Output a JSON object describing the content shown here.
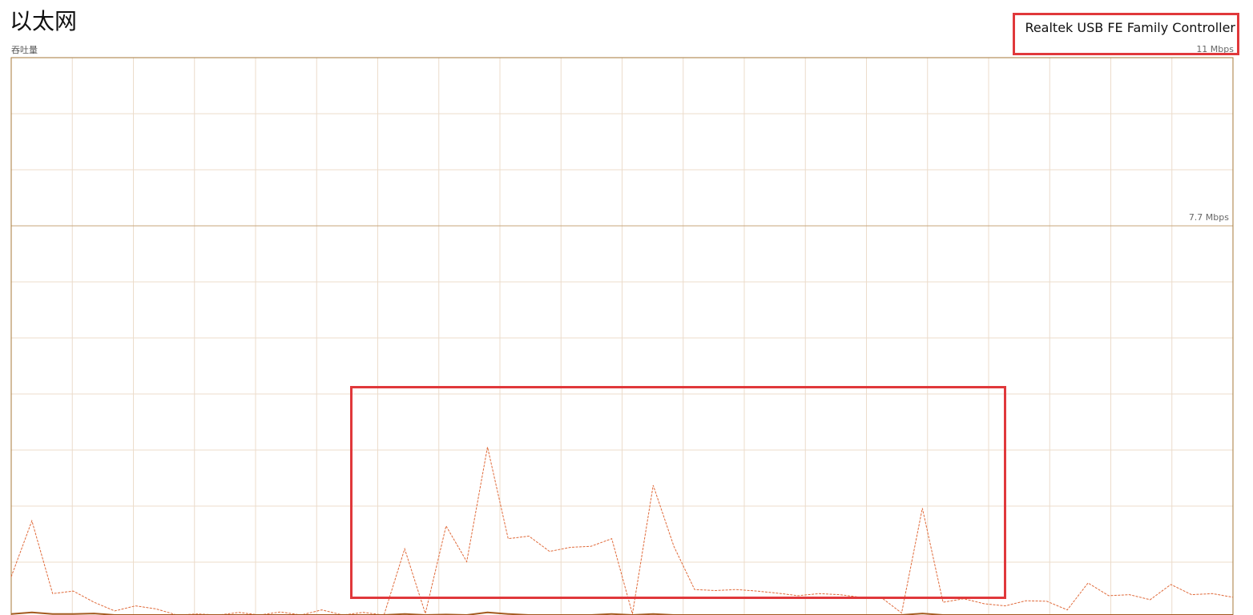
{
  "header": {
    "title": "以太网",
    "subtitle": "吞吐量"
  },
  "device": {
    "name": "Realtek USB FE Family Controller",
    "max_speed_label": "11 Mbps"
  },
  "graph": {
    "scale_label": "7.7 Mbps",
    "colors": {
      "border": "#a77a3a",
      "grid": "#ecdccb",
      "scale_line": "#c7a57a",
      "receive": "#e06a3a",
      "send": "#a35a1f",
      "highlight": "#e0383b"
    }
  },
  "chart_data": {
    "type": "line",
    "ylim": [
      0,
      11
    ],
    "y_unit": "Mbps",
    "x_count": 60,
    "series": [
      {
        "style": "dashed",
        "values": [
          0.75,
          1.85,
          0.42,
          0.47,
          0.25,
          0.08,
          0.18,
          0.12,
          0.0,
          0.02,
          0.0,
          0.05,
          0.0,
          0.06,
          0.0,
          0.1,
          0.0,
          0.05,
          0.0,
          1.3,
          0.03,
          1.75,
          1.05,
          3.3,
          1.5,
          1.55,
          1.25,
          1.33,
          1.35,
          1.5,
          0.02,
          2.55,
          1.35,
          0.5,
          0.48,
          0.5,
          0.47,
          0.43,
          0.38,
          0.42,
          0.4,
          0.35,
          0.35,
          0.04,
          2.1,
          0.25,
          0.32,
          0.22,
          0.18,
          0.28,
          0.27,
          0.1,
          0.63,
          0.38,
          0.4,
          0.3,
          0.6,
          0.4,
          0.42,
          0.35
        ]
      },
      {
        "style": "solid",
        "values": [
          0.02,
          0.05,
          0.02,
          0.02,
          0.03,
          0.0,
          0.0,
          0.0,
          0.0,
          0.0,
          0.0,
          0.0,
          0.0,
          0.0,
          0.0,
          0.0,
          0.0,
          0.0,
          0.0,
          0.02,
          0.0,
          0.01,
          0.0,
          0.05,
          0.02,
          0.0,
          0.0,
          0.0,
          0.0,
          0.02,
          0.0,
          0.02,
          0.0,
          0.0,
          0.0,
          0.0,
          0.0,
          0.0,
          0.0,
          0.0,
          0.0,
          0.0,
          0.0,
          0.0,
          0.03,
          0.0,
          0.0,
          0.0,
          0.0,
          0.0,
          0.0,
          0.0,
          0.0,
          0.0,
          0.0,
          0.0,
          0.0,
          0.0,
          0.0,
          0.0
        ]
      }
    ]
  }
}
